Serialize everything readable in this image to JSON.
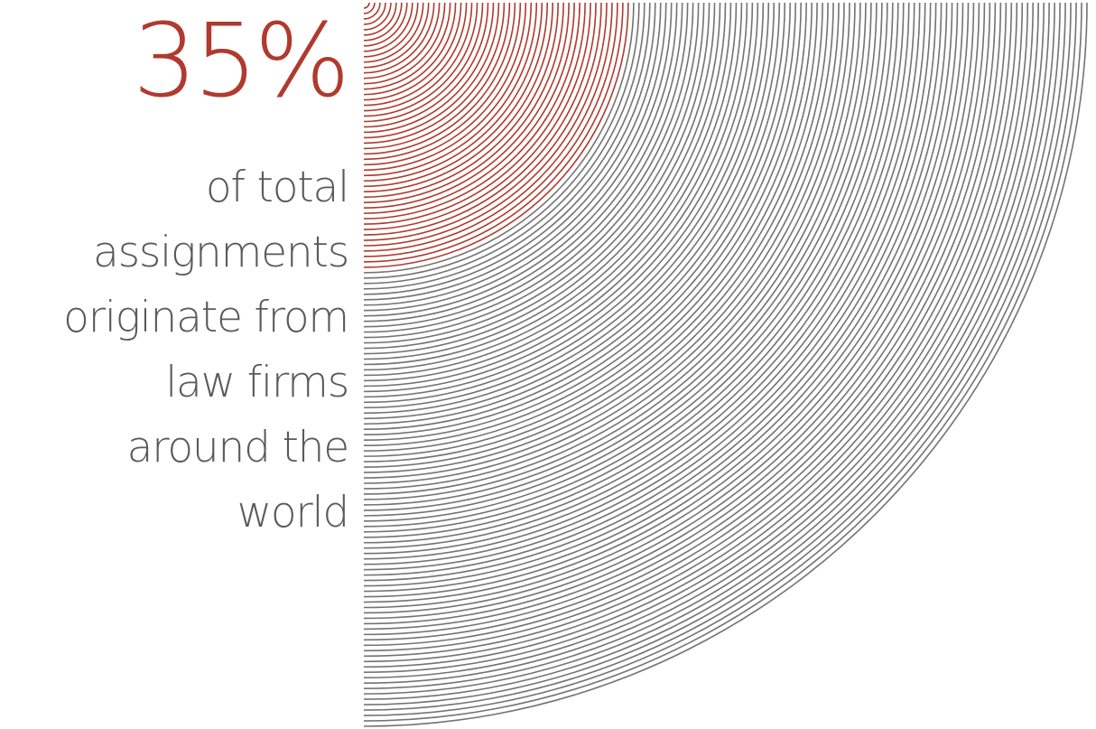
{
  "stat": {
    "value": "35%",
    "caption_lines": [
      "of total",
      "assignments",
      "originate from",
      "law firms",
      "around the",
      "world"
    ]
  },
  "visual": {
    "share": 0.35,
    "accent_color": "#b03a2e",
    "base_color": "#737373",
    "text_color": "#5a5a5a"
  }
}
